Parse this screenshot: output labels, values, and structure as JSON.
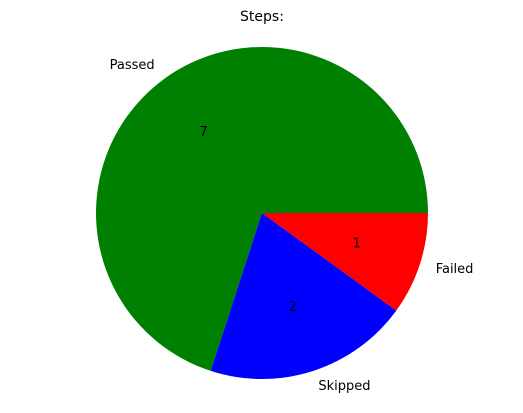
{
  "chart_data": {
    "type": "pie",
    "title": "Steps:",
    "categories": [
      "Passed",
      "Skipped",
      "Failed"
    ],
    "values": [
      7,
      2,
      1
    ],
    "value_labels": [
      "7",
      "2",
      "1"
    ],
    "colors": [
      "#008000",
      "#0000ff",
      "#ff0000"
    ],
    "start_angle_deg": 0,
    "direction": "counterclockwise",
    "legend": "none"
  }
}
